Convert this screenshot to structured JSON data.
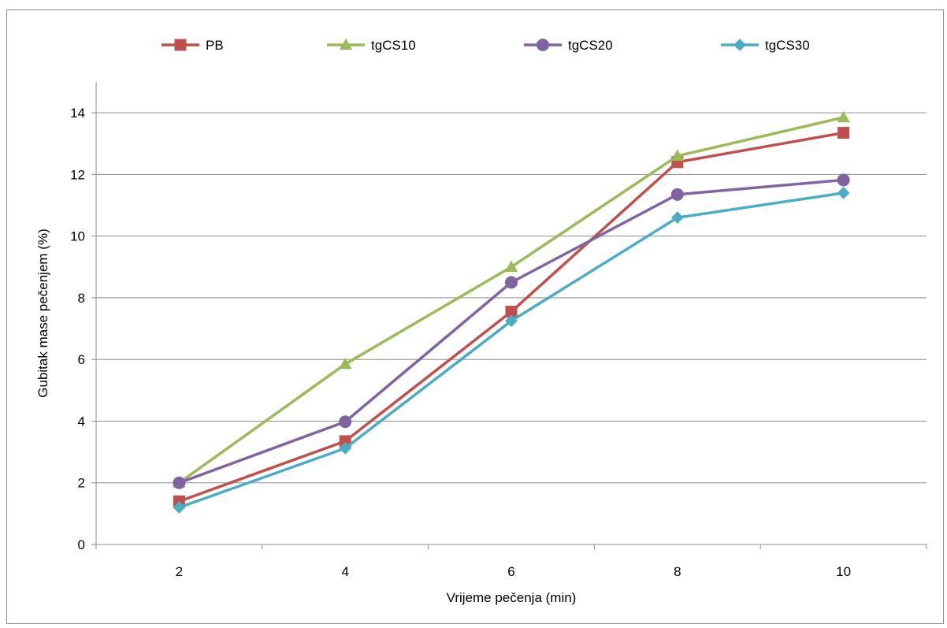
{
  "chart_data": {
    "type": "line",
    "xlabel": "Vrijeme pečenja (min)",
    "ylabel": "Gubitak mase pečenjem (%)",
    "categories": [
      "2",
      "4",
      "6",
      "8",
      "10"
    ],
    "ylim": [
      0,
      15
    ],
    "yticks": [
      "0",
      "2",
      "4",
      "6",
      "8",
      "10",
      "12",
      "14"
    ],
    "grid": "horizontal",
    "legend_position": "top",
    "series": [
      {
        "name": "PB",
        "color": "#c0504d",
        "marker": "square",
        "values": [
          1.4,
          3.35,
          7.55,
          12.4,
          13.35
        ]
      },
      {
        "name": "tgCS10",
        "color": "#9bbb59",
        "marker": "triangle",
        "values": [
          2.0,
          5.85,
          9.0,
          12.6,
          13.85
        ]
      },
      {
        "name": "tgCS20",
        "color": "#8064a2",
        "marker": "circle",
        "values": [
          2.0,
          3.98,
          8.5,
          11.35,
          11.82
        ]
      },
      {
        "name": "tgCS30",
        "color": "#4bacc6",
        "marker": "diamond",
        "values": [
          1.2,
          3.12,
          7.25,
          10.6,
          11.4
        ]
      }
    ]
  }
}
